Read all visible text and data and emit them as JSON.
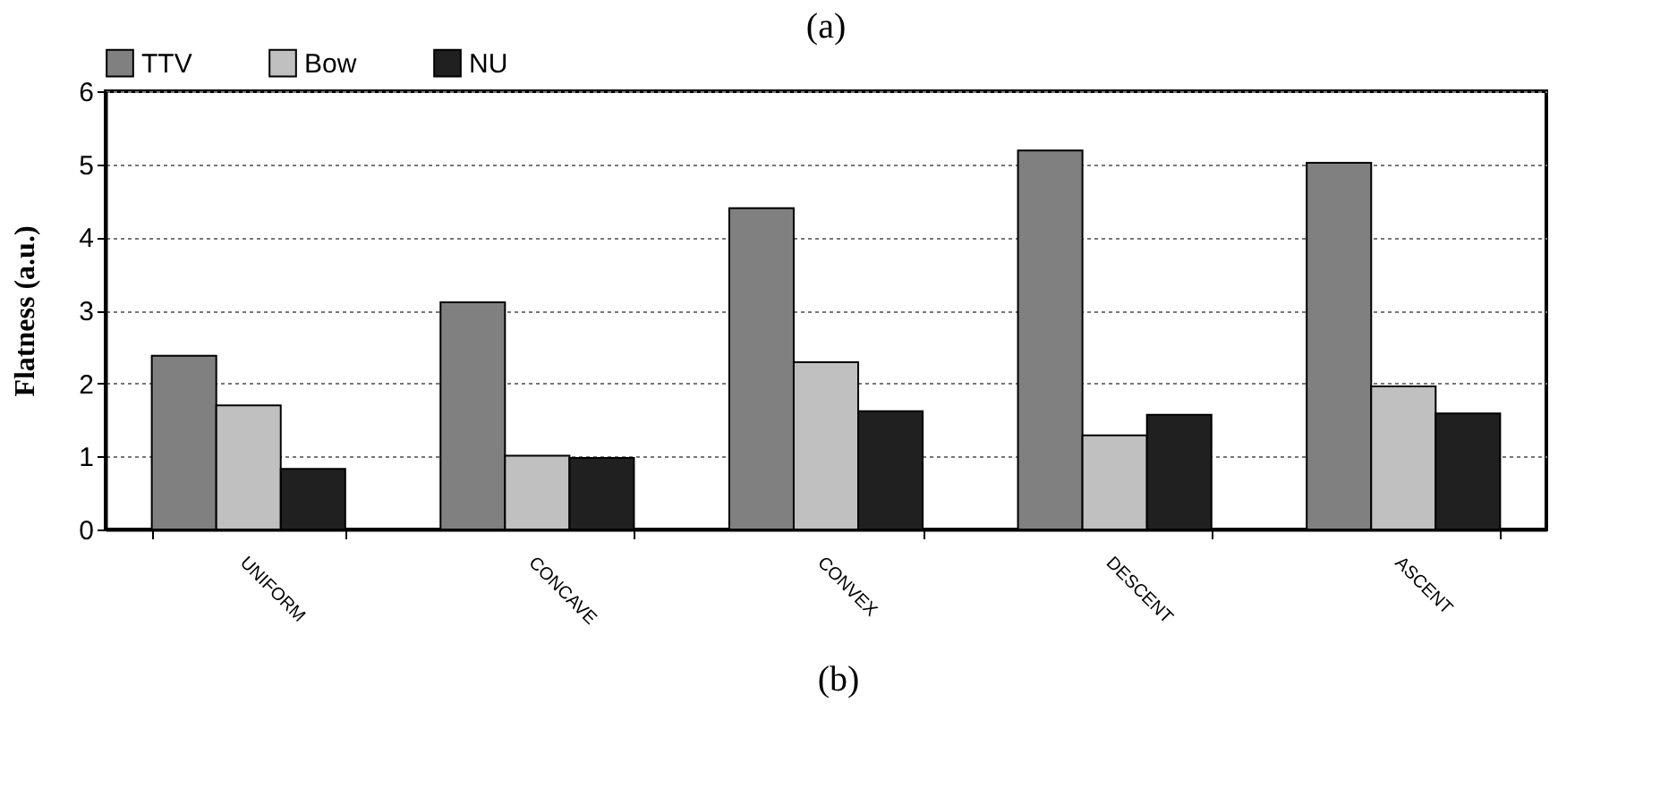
{
  "chart_data": {
    "type": "bar",
    "title": "(a)",
    "ylabel": "Flatness (a.u.)",
    "annotations": [
      "(b)"
    ],
    "categories": [
      "UNIFORM",
      "CONCAVE",
      "CONVEX",
      "DESCENT",
      "ASCENT"
    ],
    "series": [
      {
        "name": "TTV",
        "color": "#808080",
        "values": [
          2.38,
          3.11,
          4.4,
          5.19,
          5.02
        ]
      },
      {
        "name": "Bow",
        "color": "#c0c0c0",
        "values": [
          1.7,
          1.01,
          2.29,
          1.29,
          1.96
        ]
      },
      {
        "name": "NU",
        "color": "#202020",
        "values": [
          0.83,
          0.98,
          1.62,
          1.57,
          1.59
        ]
      }
    ],
    "ylim": [
      0,
      6
    ],
    "yticks": [
      0,
      1,
      2,
      3,
      4,
      5,
      6
    ],
    "grid": "y",
    "legend": "top"
  }
}
